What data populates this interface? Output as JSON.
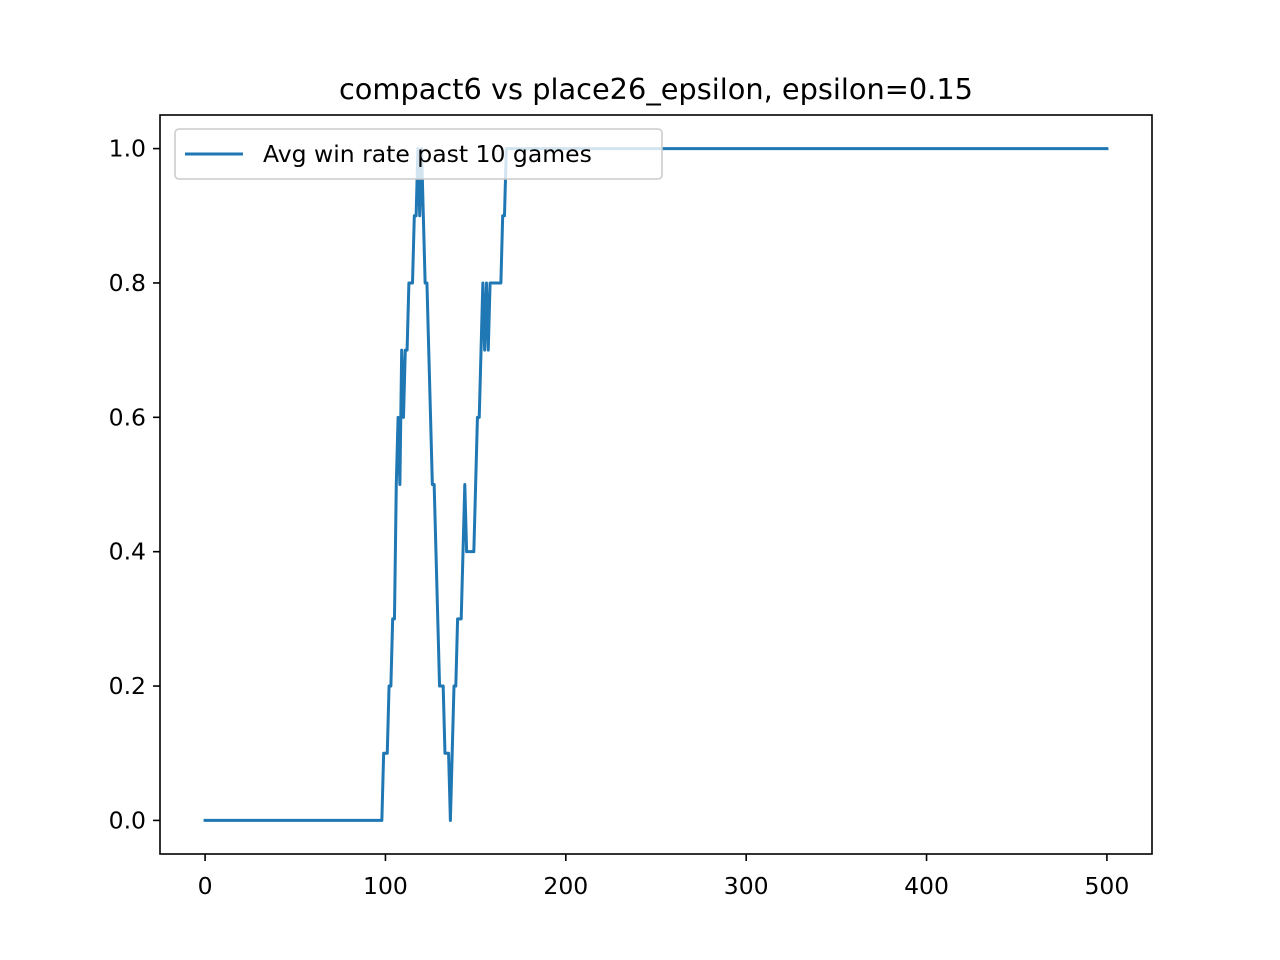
{
  "chart_data": {
    "type": "line",
    "title": "compact6 vs place26_epsilon, epsilon=0.15",
    "xlabel": "",
    "ylabel": "",
    "xlim": [
      -25,
      525
    ],
    "ylim": [
      -0.05,
      1.05
    ],
    "xticks": [
      0,
      100,
      200,
      300,
      400,
      500
    ],
    "yticks": [
      0.0,
      0.2,
      0.4,
      0.6,
      0.8,
      1.0
    ],
    "xtick_labels": [
      "0",
      "100",
      "200",
      "300",
      "400",
      "500"
    ],
    "ytick_labels": [
      "0.0",
      "0.2",
      "0.4",
      "0.6",
      "0.8",
      "1.0"
    ],
    "grid": false,
    "legend_position": "top-left",
    "series": [
      {
        "name": "Avg win rate past 10 games",
        "color": "#1f77b4",
        "x": [
          0,
          97,
          98,
          99,
          100,
          101,
          102,
          103,
          104,
          105,
          106,
          107,
          108,
          109,
          110,
          111,
          112,
          113,
          114,
          115,
          116,
          117,
          118,
          119,
          120,
          121,
          122,
          123,
          124,
          125,
          126,
          127,
          128,
          129,
          130,
          131,
          132,
          133,
          134,
          135,
          136,
          137,
          138,
          139,
          140,
          141,
          142,
          143,
          144,
          145,
          146,
          147,
          148,
          149,
          150,
          151,
          152,
          153,
          154,
          155,
          156,
          157,
          158,
          159,
          160,
          161,
          162,
          163,
          164,
          165,
          166,
          167,
          168,
          169,
          170,
          171,
          172,
          173,
          174,
          175,
          500
        ],
        "values": [
          0.0,
          0.0,
          0.0,
          0.1,
          0.1,
          0.1,
          0.2,
          0.2,
          0.3,
          0.3,
          0.5,
          0.6,
          0.5,
          0.7,
          0.6,
          0.7,
          0.7,
          0.8,
          0.8,
          0.8,
          0.9,
          0.9,
          1.0,
          0.9,
          1.0,
          0.9,
          0.8,
          0.8,
          0.7,
          0.6,
          0.5,
          0.5,
          0.4,
          0.3,
          0.2,
          0.2,
          0.2,
          0.1,
          0.1,
          0.1,
          0.0,
          0.1,
          0.2,
          0.2,
          0.3,
          0.3,
          0.3,
          0.4,
          0.5,
          0.4,
          0.4,
          0.4,
          0.4,
          0.4,
          0.5,
          0.6,
          0.6,
          0.7,
          0.8,
          0.7,
          0.8,
          0.7,
          0.8,
          0.8,
          0.8,
          0.8,
          0.8,
          0.8,
          0.8,
          0.9,
          0.9,
          1.0,
          1.0,
          1.0,
          1.0,
          1.0,
          1.0,
          1.0,
          1.0,
          1.0,
          1.0
        ]
      }
    ]
  }
}
